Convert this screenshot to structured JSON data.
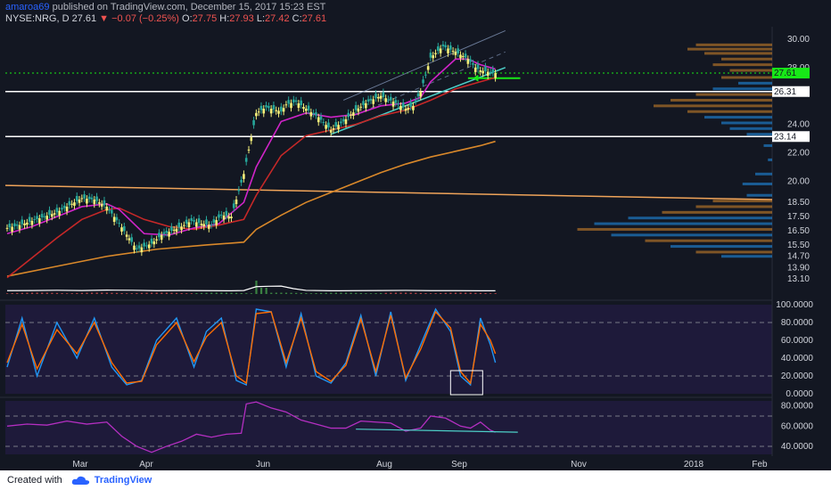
{
  "header": {
    "author": "amaroa69",
    "published_text": "published on TradingView.com, December 15, 2017 15:23 EST",
    "symbol": "NYSE:NRG, D",
    "last": "27.61",
    "change": "−0.07 (−0.25%)",
    "open_label": "O:",
    "open": "27.75",
    "high_label": "H:",
    "high": "27.93",
    "low_label": "L:",
    "low": "27.42",
    "close_label": "C:",
    "close": "27.61"
  },
  "footer": {
    "created_with": "Created with",
    "brand": "TradingView"
  },
  "colors": {
    "background": "#131722",
    "up": "#f5f07a",
    "down": "#26a69a",
    "ma_fast": "#d024c8",
    "ma_mid": "#c62828",
    "ma_slow": "#d9882a",
    "stoch_k": "#2196f3",
    "stoch_d": "#ff6d00",
    "rsi": "#b42fc1",
    "trend": "#4dd0c8",
    "level": "#ffffff",
    "highlight": "#17e817"
  },
  "chart_data": [
    {
      "type": "line",
      "title": "NYSE:NRG, D",
      "x_tick_labels": [
        "Mar",
        "Apr",
        "Jun",
        "Aug",
        "Sep",
        "Nov",
        "2018",
        "Feb"
      ],
      "y_tick_labels": [
        "30.00",
        "28.00",
        "24.00",
        "22.00",
        "20.00",
        "18.50",
        "17.50",
        "16.50",
        "15.50",
        "14.70",
        "13.90",
        "13.10"
      ],
      "ylim": [
        12.8,
        30.5
      ],
      "series": [
        {
          "key": "price",
          "x": [
            0,
            5,
            10,
            15,
            20,
            25,
            30,
            35,
            40,
            45,
            52,
            58,
            62,
            66,
            70,
            74,
            78,
            82,
            86,
            90,
            95,
            100,
            104,
            108,
            110,
            112,
            116,
            120,
            125,
            130,
            135,
            140,
            145,
            150,
            155,
            160,
            163,
            166,
            170,
            175,
            180,
            185,
            188,
            190,
            193,
            196
          ],
          "values": [
            16.7,
            16.9,
            17.2,
            17.5,
            17.8,
            18.3,
            18.8,
            18.7,
            18.2,
            17.0,
            15.2,
            15.6,
            16.2,
            16.5,
            16.8,
            17.2,
            17.0,
            16.9,
            17.6,
            17.5,
            20.5,
            24.8,
            25.2,
            25.0,
            24.9,
            25.4,
            25.6,
            25.1,
            24.5,
            23.6,
            24.2,
            25.0,
            25.6,
            26.0,
            25.6,
            25.1,
            25.3,
            26.3,
            28.7,
            29.5,
            29.1,
            28.6,
            28.0,
            27.8,
            27.7,
            27.61
          ]
        },
        {
          "key": "ma_fast",
          "x": [
            0,
            10,
            20,
            30,
            40,
            45,
            55,
            65,
            75,
            85,
            95,
            100,
            110,
            120,
            130,
            140,
            150,
            160,
            166,
            170,
            180,
            185,
            190,
            196
          ],
          "values": [
            16.3,
            16.8,
            17.5,
            18.2,
            18.4,
            18.0,
            16.3,
            16.2,
            16.7,
            17.0,
            18.5,
            21.0,
            24.2,
            24.8,
            24.5,
            24.7,
            25.3,
            25.5,
            25.9,
            27.0,
            28.6,
            28.6,
            28.2,
            27.9
          ]
        },
        {
          "key": "ma_mid",
          "x": [
            0,
            10,
            20,
            30,
            40,
            45,
            55,
            65,
            75,
            85,
            95,
            100,
            110,
            120,
            130,
            140,
            150,
            160,
            170,
            180,
            190,
            196
          ],
          "values": [
            13.2,
            14.6,
            16.0,
            17.3,
            18.0,
            18.1,
            17.3,
            16.8,
            16.6,
            16.9,
            17.3,
            19.0,
            21.8,
            23.2,
            23.6,
            24.0,
            24.6,
            25.0,
            25.7,
            26.5,
            27.0,
            27.3
          ]
        },
        {
          "key": "ma_slow",
          "x": [
            0,
            20,
            40,
            60,
            80,
            95,
            100,
            110,
            120,
            130,
            140,
            150,
            160,
            170,
            180,
            190,
            196
          ],
          "values": [
            13.3,
            14.0,
            14.7,
            15.2,
            15.5,
            15.7,
            16.6,
            17.6,
            18.5,
            19.2,
            19.9,
            20.6,
            21.2,
            21.7,
            22.1,
            22.5,
            22.8
          ]
        }
      ],
      "levels": [
        {
          "label": "26.31",
          "value": 26.31
        },
        {
          "label": "23.14",
          "value": 23.14
        },
        {
          "label": "27.61",
          "value": 27.61
        }
      ],
      "volume_x": [
        0,
        10,
        20,
        30,
        40,
        50,
        60,
        70,
        80,
        90,
        95,
        100,
        105,
        110,
        115,
        120,
        130,
        140,
        150,
        160,
        170,
        180,
        190,
        196
      ],
      "volume_values": [
        2.5,
        2.6,
        2.8,
        2.6,
        2.9,
        2.8,
        2.5,
        2.6,
        2.5,
        2.4,
        2.6,
        5.5,
        5.8,
        5.9,
        4.0,
        2.7,
        2.4,
        2.5,
        2.6,
        2.7,
        2.5,
        2.5,
        2.4,
        2.4
      ]
    },
    {
      "type": "line",
      "y_tick_labels": [
        "100.0000",
        "80.0000",
        "60.0000",
        "40.0000",
        "20.0000",
        "0.0000"
      ],
      "ylim": [
        0,
        100
      ],
      "series": [
        {
          "key": "stoch_k",
          "x": [
            0,
            6,
            12,
            20,
            28,
            35,
            42,
            48,
            54,
            60,
            68,
            75,
            80,
            86,
            92,
            96,
            100,
            106,
            112,
            118,
            124,
            130,
            136,
            142,
            148,
            154,
            160,
            166,
            172,
            178,
            182,
            186,
            190,
            194,
            196
          ],
          "values": [
            30,
            85,
            20,
            80,
            40,
            85,
            30,
            10,
            15,
            60,
            85,
            30,
            70,
            85,
            15,
            10,
            95,
            92,
            30,
            90,
            20,
            12,
            35,
            88,
            20,
            92,
            15,
            55,
            95,
            70,
            20,
            10,
            85,
            55,
            35
          ]
        },
        {
          "key": "stoch_d",
          "x": [
            0,
            6,
            12,
            20,
            28,
            35,
            42,
            48,
            54,
            60,
            68,
            75,
            80,
            86,
            92,
            96,
            100,
            106,
            112,
            118,
            124,
            130,
            136,
            142,
            148,
            154,
            160,
            166,
            172,
            178,
            182,
            186,
            190,
            194,
            196
          ],
          "values": [
            35,
            78,
            28,
            72,
            45,
            80,
            35,
            12,
            14,
            55,
            80,
            36,
            64,
            80,
            20,
            12,
            90,
            92,
            35,
            85,
            25,
            14,
            32,
            84,
            25,
            88,
            18,
            50,
            92,
            74,
            25,
            12,
            78,
            60,
            45
          ]
        }
      ]
    },
    {
      "type": "line",
      "y_tick_labels": [
        "80.0000",
        "60.0000",
        "40.0000"
      ],
      "ylim": [
        32,
        85
      ],
      "series": [
        {
          "key": "rsi",
          "x": [
            0,
            8,
            16,
            24,
            32,
            40,
            46,
            52,
            58,
            64,
            70,
            76,
            82,
            88,
            94,
            96,
            100,
            106,
            112,
            118,
            124,
            130,
            136,
            142,
            148,
            154,
            160,
            166,
            170,
            176,
            182,
            186,
            190,
            194,
            196
          ],
          "values": [
            60,
            62,
            61,
            65,
            62,
            64,
            50,
            40,
            34,
            40,
            45,
            52,
            49,
            52,
            53,
            82,
            84,
            78,
            74,
            66,
            62,
            58,
            58,
            65,
            64,
            63,
            55,
            58,
            70,
            68,
            60,
            58,
            64,
            56,
            54
          ]
        }
      ]
    }
  ]
}
